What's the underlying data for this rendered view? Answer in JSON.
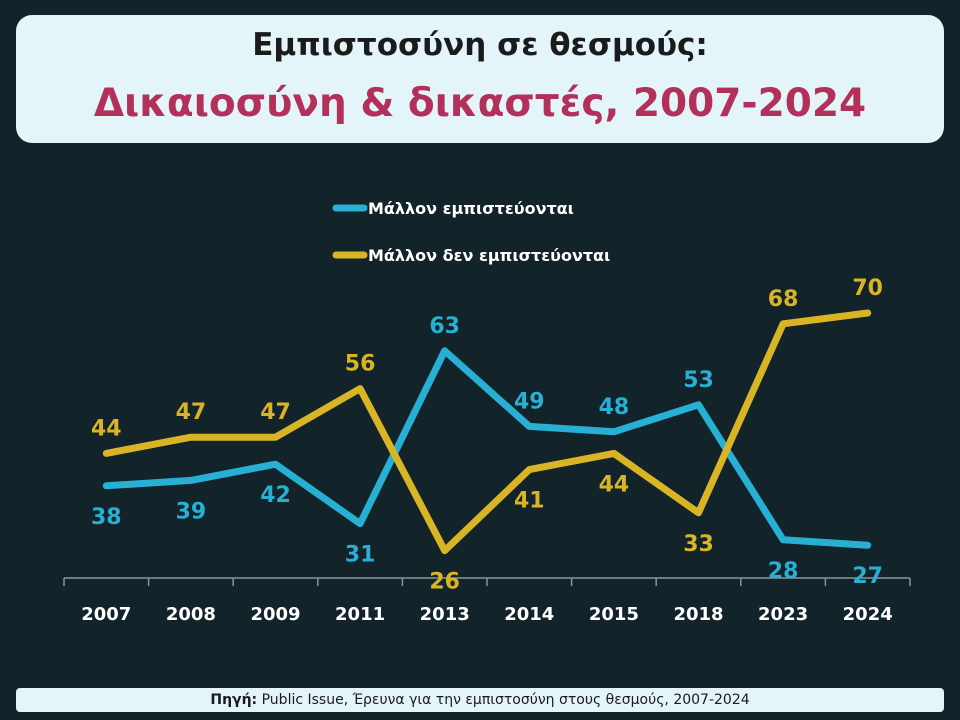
{
  "header": {
    "title_line1": "Εμπιστοσύνη σε θεσμούς:",
    "title_line2": "Δικαιοσύνη & δικαστές, 2007-2024"
  },
  "footer": {
    "source_label": "Πηγή:",
    "source_text": "Public Issue, Έρευνα για την εμπιστοσύνη στους θεσμούς, 2007-2024"
  },
  "colors": {
    "background": "#12242a",
    "trust": "#27b0d4",
    "distrust": "#d9b526",
    "title_accent": "#b3305a"
  },
  "chart_data": {
    "type": "line",
    "title": "Δικαιοσύνη & δικαστές, 2007-2024",
    "xlabel": "",
    "ylabel": "",
    "categories": [
      "2007",
      "2008",
      "2009",
      "2011",
      "2013",
      "2014",
      "2015",
      "2018",
      "2023",
      "2024"
    ],
    "ylim": [
      0,
      100
    ],
    "grid": false,
    "legend_position": "top-center",
    "series": [
      {
        "name": "Μάλλον εμπιστεύονται",
        "color": "#27b0d4",
        "values": [
          38,
          39,
          42,
          31,
          63,
          49,
          48,
          53,
          28,
          27
        ]
      },
      {
        "name": "Μάλλον δεν εμπιστεύονται",
        "color": "#d9b526",
        "values": [
          44,
          47,
          47,
          56,
          26,
          41,
          44,
          33,
          68,
          70
        ]
      }
    ]
  }
}
